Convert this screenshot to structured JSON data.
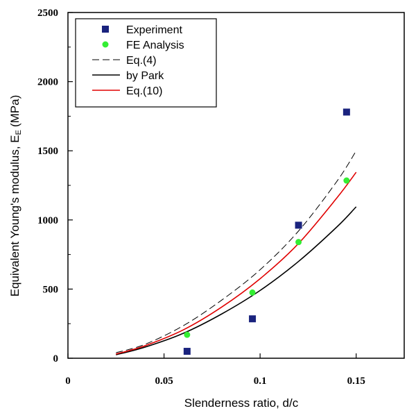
{
  "chart_data": {
    "type": "scatter",
    "xlabel": "Slenderness ratio, d/c",
    "ylabel": "Equivalent Young's modulus, E",
    "ylabel_sub": "E",
    "ylabel_unit": "(MPa)",
    "xlim": [
      0,
      0.175
    ],
    "ylim": [
      0,
      2500
    ],
    "x_ticks": [
      0,
      0.05,
      0.1,
      0.15
    ],
    "x_tick_labels": [
      "0",
      "0.05",
      "0.1",
      "0.15"
    ],
    "y_ticks": [
      0,
      500,
      1000,
      1500,
      2000,
      2500
    ],
    "y_tick_labels": [
      "0",
      "500",
      "1000",
      "1500",
      "2000",
      "2500"
    ],
    "grid": false,
    "legend_position": "top-left",
    "series": [
      {
        "name": "Experiment",
        "kind": "scatter",
        "marker": "square",
        "color": "#1a237e",
        "x": [
          0.062,
          0.096,
          0.12,
          0.145
        ],
        "y": [
          50,
          285,
          962,
          1780
        ]
      },
      {
        "name": "FE Analysis",
        "kind": "scatter",
        "marker": "circle",
        "color": "#33ee33",
        "x": [
          0.062,
          0.096,
          0.12,
          0.145
        ],
        "y": [
          170,
          475,
          840,
          1285
        ]
      },
      {
        "name": "Eq.(4)",
        "kind": "line",
        "dash": true,
        "color": "#000000",
        "x": [
          0.025,
          0.04,
          0.06,
          0.08,
          0.1,
          0.12,
          0.14,
          0.15
        ],
        "y": [
          40,
          100,
          235,
          420,
          640,
          920,
          1280,
          1500
        ]
      },
      {
        "name": "by Park",
        "kind": "line",
        "dash": false,
        "color": "#000000",
        "x": [
          0.025,
          0.04,
          0.06,
          0.08,
          0.1,
          0.12,
          0.14,
          0.15
        ],
        "y": [
          25,
          80,
          180,
          320,
          490,
          700,
          950,
          1095
        ]
      },
      {
        "name": "Eq.(10)",
        "kind": "line",
        "dash": false,
        "color": "#e00000",
        "x": [
          0.025,
          0.04,
          0.06,
          0.08,
          0.1,
          0.12,
          0.14,
          0.15
        ],
        "y": [
          30,
          90,
          205,
          370,
          575,
          830,
          1160,
          1345
        ]
      }
    ]
  }
}
